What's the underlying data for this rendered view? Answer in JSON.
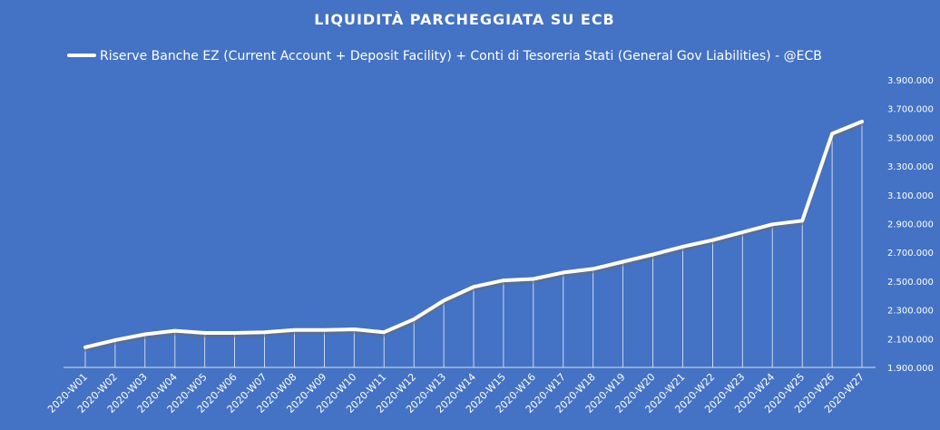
{
  "chart_data": {
    "type": "line",
    "title": "LIQUIDITÀ  PARCHEGGIATA  SU  ECB",
    "legend_position": "top",
    "grid": false,
    "drop_lines": true,
    "y_axis_side": "right",
    "ylim": [
      1900000,
      3900000
    ],
    "y_tick_values": [
      1900000,
      2100000,
      2300000,
      2500000,
      2700000,
      2900000,
      3100000,
      3300000,
      3500000,
      3700000,
      3900000
    ],
    "y_tick_labels": [
      "1.900.000",
      "2.100.000",
      "2.300.000",
      "2.500.000",
      "2.700.000",
      "2.900.000",
      "3.100.000",
      "3.300.000",
      "3.500.000",
      "3.700.000",
      "3.900.000"
    ],
    "categories": [
      "2020-W01",
      "2020-W02",
      "2020-W03",
      "2020-W04",
      "2020-W05",
      "2020-W06",
      "2020-W07",
      "2020-W08",
      "2020-W09",
      "2020-W10",
      "2020-W11",
      "2020-W12",
      "2020-W13",
      "2020-W14",
      "2020-W15",
      "2020-W16",
      "2020-W17",
      "2020-W18",
      "2020-W19",
      "2020-W20",
      "2020-W21",
      "2020-W22",
      "2020-W23",
      "2020-W24",
      "2020-W25",
      "2020-W26",
      "2020-W27"
    ],
    "series": [
      {
        "name": "Riserve Banche EZ (Current Account + Deposit Facility) + Conti di Tesoreria Stati (General Gov Liabilities) - @ECB",
        "color": "#ffffff",
        "values": [
          2040000,
          2090000,
          2130000,
          2155000,
          2140000,
          2140000,
          2145000,
          2160000,
          2160000,
          2165000,
          2145000,
          2235000,
          2365000,
          2460000,
          2505000,
          2515000,
          2560000,
          2585000,
          2635000,
          2685000,
          2740000,
          2785000,
          2840000,
          2895000,
          2920000,
          3525000,
          3610000
        ]
      }
    ]
  }
}
